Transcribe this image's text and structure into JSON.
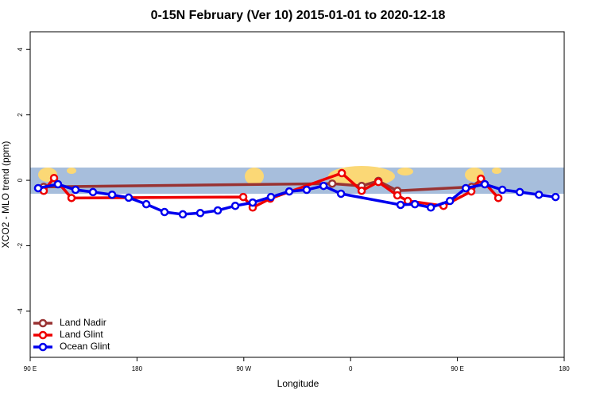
{
  "chart_data": {
    "type": "line",
    "title": "0-15N February (Ver 10)   2015-01-01 to 2020-12-18",
    "x_label": "Longitude",
    "y_label": "XCO2 - MLO trend (ppm)",
    "xlim": [
      90,
      540
    ],
    "xticks": [
      {
        "value": 90,
        "label": "90 E"
      },
      180,
      {
        "value": 270,
        "label": "90 W"
      },
      {
        "value": 360,
        "label": "0"
      },
      {
        "value": 450,
        "label": "90 E"
      },
      {
        "value": 540,
        "label": "180"
      }
    ],
    "ylim": [
      -5.41,
      4.54
    ],
    "yticks": [
      -4,
      -2,
      0,
      2,
      4
    ],
    "legend": "bottom-left",
    "series": [
      {
        "name": "Land Nadir",
        "color": "#993333",
        "x": [
          101.4,
          344.5,
          369.3,
          383.4,
          399.4,
          462,
          470
        ],
        "values": [
          -0.2,
          -0.1,
          -0.17,
          -0.02,
          -0.32,
          -0.2,
          0.02
        ]
      },
      {
        "name": "Land Glint",
        "color": "#ee0000",
        "x": [
          101.4,
          110.1,
          124.8,
          269.5,
          277.5,
          292.3,
          352.6,
          369.3,
          383.4,
          399.4,
          408.2,
          438.3,
          461.7,
          469.8,
          484.5
        ],
        "values": [
          -0.32,
          0.07,
          -0.54,
          -0.51,
          -0.83,
          -0.56,
          0.22,
          -0.32,
          -0.05,
          -0.46,
          -0.63,
          -0.78,
          -0.34,
          0.05,
          -0.54
        ]
      },
      {
        "name": "Ocean Glint",
        "color": "#0000ee",
        "x": [
          96.7,
          113.4,
          128.2,
          142.9,
          159,
          173,
          187.8,
          203.2,
          218.6,
          233.3,
          248.1,
          262.8,
          277.5,
          292.9,
          308.3,
          323,
          337.2,
          351.9,
          402.1,
          414.2,
          427.6,
          443.7,
          457.1,
          473.1,
          487.9,
          502.6,
          518.7,
          532.7
        ],
        "values": [
          -0.24,
          -0.12,
          -0.29,
          -0.36,
          -0.44,
          -0.53,
          -0.73,
          -0.97,
          -1.04,
          -1.0,
          -0.92,
          -0.78,
          -0.68,
          -0.51,
          -0.34,
          -0.29,
          -0.17,
          -0.41,
          -0.75,
          -0.73,
          -0.83,
          -0.63,
          -0.24,
          -0.12,
          -0.29,
          -0.36,
          -0.44,
          -0.51
        ]
      }
    ]
  }
}
